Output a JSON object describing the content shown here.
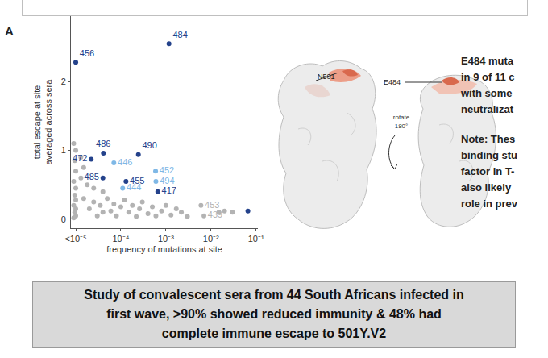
{
  "panel_label": "A",
  "chart_data": {
    "type": "scatter",
    "x_label": "frequency of mutations at site",
    "y_label": [
      "total escape at site",
      "averaged across sera"
    ],
    "log": "x",
    "grid": false,
    "xlim": [
      7.8e-06,
      0.11
    ],
    "ylim": [
      -0.13,
      2.95
    ],
    "xticks": [
      {
        "value": 1e-05,
        "label": "<10⁻⁵"
      },
      {
        "value": 0.0001,
        "label": "10⁻⁴"
      },
      {
        "value": 0.001,
        "label": "10⁻³"
      },
      {
        "value": 0.01,
        "label": "10⁻²"
      },
      {
        "value": 0.1,
        "label": "10⁻¹"
      }
    ],
    "yticks": [
      0,
      1,
      2
    ],
    "data_labels": true,
    "series": [
      {
        "color": "#b3b3b3",
        "x": [
          9e-06,
          1e-05,
          9.5e-06,
          1e-05,
          9e-06,
          1e-05,
          9.5e-06,
          1e-05,
          9e-06,
          1e-05,
          9.5e-06,
          1e-05,
          9e-06,
          1.5e-05,
          2e-05,
          2.5e-05,
          3e-05,
          3.5e-05,
          4e-05,
          5e-05,
          6e-05,
          7e-05,
          8e-05,
          0.0001,
          0.00012,
          0.00015,
          0.00018,
          0.00022,
          0.00026,
          0.0003,
          0.0004,
          0.0005,
          0.0006,
          0.0008,
          0.001,
          0.0013,
          0.0017,
          0.0022,
          0.003,
          1.3e-05,
          1.8e-05,
          2.5e-05,
          4e-05,
          1.3e-05,
          1.5e-05,
          0.006,
          0.007,
          0.015,
          0.02,
          0.03
        ],
        "values": [
          1.1,
          1.0,
          0.85,
          0.7,
          0.55,
          0.45,
          0.35,
          0.28,
          0.2,
          0.15,
          0.1,
          0.05,
          0.02,
          0.3,
          0.15,
          0.25,
          0.05,
          0.2,
          0.1,
          0.3,
          0.12,
          0.22,
          0.05,
          0.18,
          0.28,
          0.1,
          0.2,
          0.04,
          0.15,
          0.25,
          0.08,
          0.18,
          0.05,
          0.12,
          0.2,
          0.06,
          0.15,
          0.1,
          0.04,
          0.6,
          0.5,
          0.45,
          0.4,
          0.9,
          0.75,
          0.2,
          0.05,
          0.1,
          0.12,
          0.1
        ],
        "labels": [
          null,
          null,
          null,
          null,
          null,
          null,
          null,
          null,
          null,
          null,
          null,
          null,
          null,
          null,
          null,
          null,
          null,
          null,
          null,
          null,
          null,
          null,
          null,
          null,
          null,
          null,
          null,
          null,
          null,
          null,
          null,
          null,
          null,
          null,
          null,
          null,
          null,
          null,
          null,
          null,
          null,
          null,
          null,
          null,
          null,
          "453",
          "439",
          null,
          null,
          null
        ]
      },
      {
        "color": "#7fb8e6",
        "x": [
          7e-05,
          0.00059,
          0.0006,
          0.00011
        ],
        "values": [
          0.82,
          0.7,
          0.55,
          0.45
        ],
        "labels": [
          "446",
          "452",
          "494",
          "444"
        ]
      },
      {
        "color": "#24428b",
        "x": [
          1e-05,
          0.00117,
          4.1e-05,
          0.000245,
          2.2e-05,
          4e-05,
          0.00013,
          0.00066,
          0.066
        ],
        "values": [
          2.28,
          2.55,
          0.96,
          0.94,
          0.87,
          0.6,
          0.55,
          0.4,
          0.12
        ],
        "labels": [
          "456",
          "484",
          "486",
          "490",
          "472",
          "485",
          "455",
          "417",
          null
        ]
      }
    ]
  },
  "structures": {
    "front_label": "N501",
    "rotate_label": [
      "rotate",
      "180°"
    ],
    "back_label": "E484"
  },
  "side_text": [
    [
      "E484 muta",
      "in 9 of 11 c",
      "with some",
      "neutralizat"
    ],
    [
      "Note: Thes",
      "binding stu",
      "factor in T-",
      "also likely",
      "role in prev"
    ]
  ],
  "caption": [
    "Study of convalescent sera from 44 South Africans infected in",
    "first wave, >90% showed reduced immunity & 48% had",
    "complete immune escape to 501Y.V2"
  ]
}
